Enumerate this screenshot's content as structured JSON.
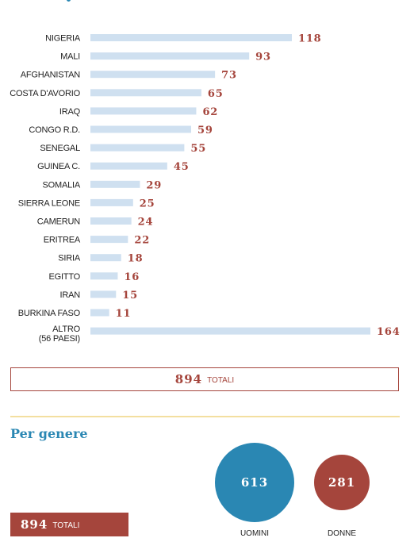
{
  "chart_data": {
    "type": "bar",
    "orientation": "horizontal",
    "categories": [
      "NIGERIA",
      "MALI",
      "AFGHANISTAN",
      "COSTA D'AVORIO",
      "IRAQ",
      "CONGO R.D.",
      "SENEGAL",
      "GUINEA C.",
      "SOMALIA",
      "SIERRA LEONE",
      "CAMERUN",
      "ERITREA",
      "SIRIA",
      "EGITTO",
      "IRAN",
      "BURKINA FASO",
      "ALTRO"
    ],
    "category_notes": {
      "ALTRO": "(56 PAESI)"
    },
    "values": [
      118,
      93,
      73,
      65,
      62,
      59,
      55,
      45,
      29,
      25,
      24,
      22,
      18,
      16,
      15,
      11,
      164
    ],
    "xlim": [
      0,
      164
    ],
    "grid": false,
    "colors": {
      "bar": "#cfe0f0",
      "value_label": "#a5453c"
    }
  },
  "totals": {
    "value": "894",
    "label": "TOTALI"
  },
  "gender": {
    "title": "Per genere",
    "men": {
      "value": "613",
      "label": "UOMINI",
      "color": "#2a87b3"
    },
    "women": {
      "value": "281",
      "label": "DONNE",
      "color": "#a5453c"
    },
    "totals": {
      "value": "894",
      "label": "TOTALI"
    }
  }
}
